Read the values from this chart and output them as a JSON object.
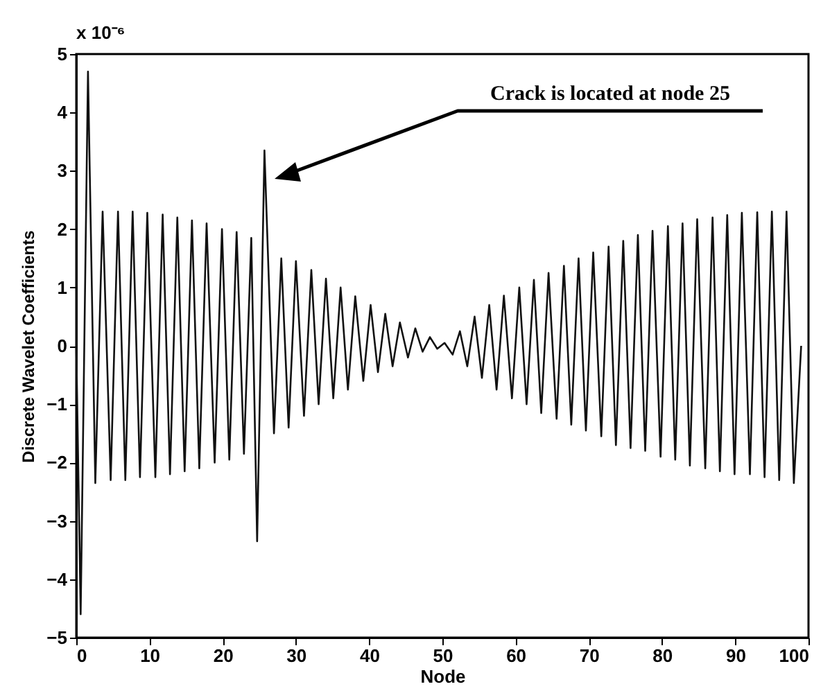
{
  "chart_data": {
    "type": "line",
    "xlabel": "Node",
    "ylabel": "Discrete Wavelet Coefficients",
    "annotations": [
      "x 10⁻⁶",
      "Crack is located at node 25"
    ],
    "x": [
      0,
      0.6,
      1.6,
      2.6,
      3.6,
      4.7,
      5.7,
      6.7,
      7.7,
      8.7,
      9.7,
      10.8,
      11.8,
      12.8,
      13.8,
      14.8,
      15.8,
      16.8,
      17.8,
      18.9,
      19.9,
      20.9,
      21.9,
      22.9,
      23.9,
      24.7,
      25.7,
      27.0,
      28.0,
      29.0,
      30.0,
      31.1,
      32.1,
      33.1,
      34.1,
      35.1,
      36.1,
      37.1,
      38.1,
      39.2,
      40.2,
      41.2,
      42.2,
      43.2,
      44.2,
      45.3,
      46.3,
      47.3,
      48.3,
      49.3,
      50.3,
      51.4,
      52.4,
      53.4,
      54.4,
      55.4,
      56.4,
      57.4,
      58.4,
      59.5,
      60.5,
      61.5,
      62.5,
      63.5,
      64.5,
      65.6,
      66.6,
      67.6,
      68.6,
      69.6,
      70.6,
      71.7,
      72.7,
      73.7,
      74.7,
      75.7,
      76.7,
      77.7,
      78.7,
      79.8,
      80.8,
      81.8,
      82.8,
      83.8,
      84.8,
      85.9,
      86.9,
      87.9,
      88.9,
      89.9,
      90.9,
      92.0,
      93.0,
      94.0,
      95.0,
      96.0,
      97.0,
      98.0,
      99.0
    ],
    "series": [
      {
        "color": "#111111",
        "values": [
          0,
          -4.6,
          4.7,
          -2.35,
          2.3,
          -2.3,
          2.3,
          -2.3,
          2.3,
          -2.25,
          2.28,
          -2.25,
          2.25,
          -2.2,
          2.2,
          -2.15,
          2.15,
          -2.1,
          2.1,
          -2.0,
          2.0,
          -1.95,
          1.95,
          -1.85,
          1.85,
          -3.35,
          3.35,
          -1.5,
          1.5,
          -1.4,
          1.45,
          -1.2,
          1.3,
          -1.0,
          1.15,
          -0.9,
          1.0,
          -0.75,
          0.85,
          -0.6,
          0.7,
          -0.45,
          0.55,
          -0.35,
          0.4,
          -0.2,
          0.3,
          -0.1,
          0.15,
          -0.05,
          0.05,
          -0.15,
          0.25,
          -0.35,
          0.5,
          -0.55,
          0.7,
          -0.75,
          0.86,
          -0.9,
          1.0,
          -1.0,
          1.13,
          -1.15,
          1.25,
          -1.25,
          1.37,
          -1.35,
          1.5,
          -1.45,
          1.6,
          -1.55,
          1.7,
          -1.7,
          1.8,
          -1.75,
          1.9,
          -1.8,
          1.97,
          -1.9,
          2.05,
          -1.95,
          2.1,
          -2.05,
          2.17,
          -2.1,
          2.2,
          -2.15,
          2.24,
          -2.2,
          2.28,
          -2.2,
          2.29,
          -2.25,
          2.3,
          -2.3,
          2.3,
          -2.35,
          0
        ]
      }
    ],
    "xlim": [
      0,
      100
    ],
    "xticks": [
      0,
      10,
      20,
      30,
      40,
      50,
      60,
      70,
      80,
      90,
      100
    ],
    "ylim": [
      -5,
      5
    ],
    "yticks": [
      -5,
      -4,
      -3,
      -2,
      -1,
      0,
      1,
      2,
      3,
      4,
      5
    ]
  }
}
